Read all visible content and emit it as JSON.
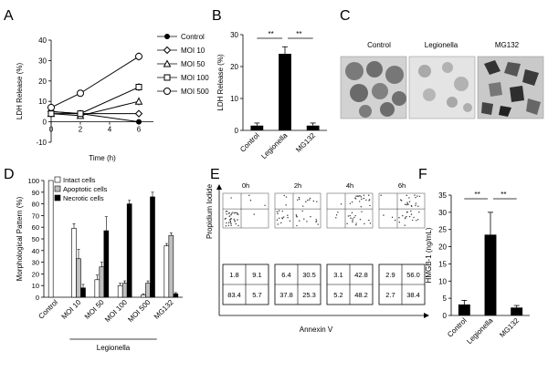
{
  "panels": {
    "A": "A",
    "B": "B",
    "C": "C",
    "D": "D",
    "E": "E",
    "F": "F"
  },
  "colors": {
    "ink": "#000000",
    "grey": "#bfbfbf",
    "white": "#ffffff"
  },
  "chart_data": [
    {
      "panel": "A",
      "type": "line",
      "xlabel": "Time (h)",
      "ylabel": "LDH Release (%)",
      "x": [
        0,
        2,
        6
      ],
      "xticks": [
        0,
        2,
        4,
        6
      ],
      "yticks": [
        -10,
        0,
        10,
        20,
        30,
        40
      ],
      "xlim": [
        0,
        7
      ],
      "ylim": [
        -10,
        40
      ],
      "series": [
        {
          "name": "Control",
          "marker": "filled-circle",
          "values": [
            5,
            4,
            0
          ],
          "err": [
            2,
            1,
            1
          ]
        },
        {
          "name": "MOI 10",
          "marker": "diamond",
          "values": [
            5,
            4,
            4
          ],
          "err": [
            2,
            1,
            1
          ]
        },
        {
          "name": "MOI 50",
          "marker": "triangle",
          "values": [
            4,
            3,
            10
          ],
          "err": [
            2,
            1,
            2
          ]
        },
        {
          "name": "MOI 100",
          "marker": "square",
          "values": [
            4,
            4,
            17
          ],
          "err": [
            2,
            1,
            2
          ]
        },
        {
          "name": "MOI 500",
          "marker": "open-circle",
          "values": [
            7,
            14,
            32
          ],
          "err": [
            2,
            1,
            2
          ]
        }
      ]
    },
    {
      "panel": "B",
      "type": "bar",
      "ylabel": "LDH Release (%)",
      "categories": [
        "Control",
        "Legionella",
        "MG132"
      ],
      "values": [
        1.5,
        24,
        1.5
      ],
      "err": [
        0.8,
        2.2,
        0.8
      ],
      "yticks": [
        0,
        10,
        20,
        30
      ],
      "ylim": [
        0,
        30
      ],
      "significance": [
        "**",
        "**"
      ]
    },
    {
      "panel": "D",
      "type": "bar",
      "ylabel": "Morphological Pattern (%)",
      "categories": [
        "Control",
        "MOI 10",
        "MOI 50",
        "MOI 100",
        "MOI 500",
        "MG132"
      ],
      "group_label": "Legionella",
      "yticks": [
        0,
        10,
        20,
        30,
        40,
        50,
        60,
        70,
        80,
        90,
        100
      ],
      "ylim": [
        0,
        100
      ],
      "series": [
        {
          "name": "Intact cells",
          "values": [
            100,
            59,
            15,
            10,
            2,
            44
          ],
          "err": [
            0,
            4,
            4,
            2,
            1,
            2
          ]
        },
        {
          "name": "Apoptotic cells",
          "values": [
            0,
            33,
            26,
            12,
            12,
            53
          ],
          "err": [
            0,
            8,
            4,
            2,
            2,
            2
          ]
        },
        {
          "name": "Necrotic cells",
          "values": [
            0,
            8,
            57,
            80,
            86,
            3
          ],
          "err": [
            0,
            3,
            12,
            3,
            4,
            1
          ]
        }
      ]
    },
    {
      "panel": "E",
      "type": "table",
      "timepoints": [
        "0h",
        "2h",
        "4h",
        "6h"
      ],
      "xlabel": "Annexin V",
      "ylabel": "Propidium Iodide",
      "quadrants": [
        {
          "ul": "1.8",
          "ur": "9.1",
          "ll": "83.4",
          "lr": "5.7"
        },
        {
          "ul": "6.4",
          "ur": "30.5",
          "ll": "37.8",
          "lr": "25.3"
        },
        {
          "ul": "3.1",
          "ur": "42.8",
          "ll": "5.2",
          "lr": "48.2"
        },
        {
          "ul": "2.9",
          "ur": "56.0",
          "ll": "2.7",
          "lr": "38.4"
        }
      ]
    },
    {
      "panel": "F",
      "type": "bar",
      "ylabel": "HMGB-1 (ng/mL)",
      "categories": [
        "Control",
        "Legionella",
        "MG132"
      ],
      "values": [
        3.2,
        23.5,
        2.3
      ],
      "err": [
        1.2,
        6.5,
        0.6
      ],
      "yticks": [
        0,
        5,
        10,
        15,
        20,
        25,
        30,
        35
      ],
      "ylim": [
        0,
        35
      ],
      "significance": [
        "**",
        "**"
      ]
    }
  ],
  "micrographs": {
    "labels": [
      "Control",
      "Legionella",
      "MG132"
    ]
  }
}
